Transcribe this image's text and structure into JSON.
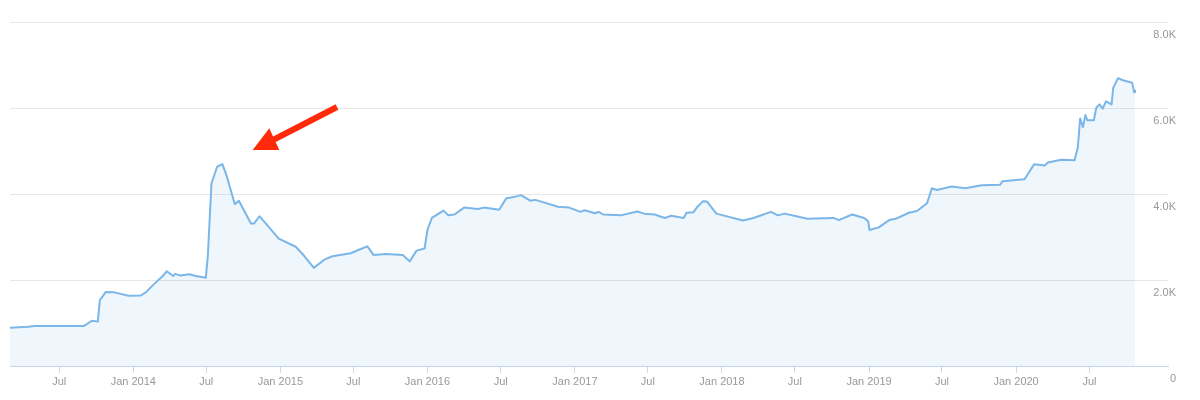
{
  "chart_data": {
    "type": "area",
    "grid": "y",
    "x": [
      "2013-03-01",
      "2013-04-15",
      "2013-05-01",
      "2013-09-01",
      "2013-09-20",
      "2013-10-05",
      "2013-10-10",
      "2013-10-25",
      "2013-11-15",
      "2013-12-20",
      "2014-01-20",
      "2014-02-01",
      "2014-02-20",
      "2014-03-15",
      "2014-03-25",
      "2014-04-10",
      "2014-04-15",
      "2014-04-28",
      "2014-05-20",
      "2014-06-05",
      "2014-06-30",
      "2014-07-05",
      "2014-07-14",
      "2014-07-28",
      "2014-08-10",
      "2014-08-20",
      "2014-09-10",
      "2014-09-20",
      "2014-10-20",
      "2014-10-28",
      "2014-11-10",
      "2014-11-25",
      "2014-12-28",
      "2015-02-08",
      "2015-03-01",
      "2015-03-25",
      "2015-04-20",
      "2015-05-10",
      "2015-06-25",
      "2015-07-15",
      "2015-08-05",
      "2015-08-20",
      "2015-09-20",
      "2015-11-01",
      "2015-11-18",
      "2015-12-05",
      "2015-12-25",
      "2016-01-01",
      "2016-01-12",
      "2016-02-10",
      "2016-02-22",
      "2016-03-08",
      "2016-04-01",
      "2016-05-05",
      "2016-05-20",
      "2016-06-27",
      "2016-07-15",
      "2016-08-05",
      "2016-08-20",
      "2016-09-12",
      "2016-09-25",
      "2016-11-20",
      "2016-12-18",
      "2017-01-15",
      "2017-01-25",
      "2017-02-20",
      "2017-03-01",
      "2017-03-12",
      "2017-04-25",
      "2017-06-05",
      "2017-06-22",
      "2017-07-18",
      "2017-08-12",
      "2017-08-28",
      "2017-09-28",
      "2017-10-05",
      "2017-10-22",
      "2017-11-01",
      "2017-11-15",
      "2017-11-25",
      "2017-12-18",
      "2018-02-22",
      "2018-03-20",
      "2018-05-03",
      "2018-05-20",
      "2018-06-05",
      "2018-07-05",
      "2018-08-01",
      "2018-10-05",
      "2018-10-18",
      "2018-11-20",
      "2018-12-20",
      "2018-12-30",
      "2019-01-02",
      "2019-01-25",
      "2019-02-20",
      "2019-03-08",
      "2019-04-10",
      "2019-04-30",
      "2019-05-25",
      "2019-06-06",
      "2019-06-18",
      "2019-07-25",
      "2019-08-28",
      "2019-10-08",
      "2019-11-22",
      "2019-11-28",
      "2019-12-20",
      "2020-01-22",
      "2020-02-15",
      "2020-03-12",
      "2020-03-20",
      "2020-04-22",
      "2020-05-25",
      "2020-06-02",
      "2020-06-08",
      "2020-06-15",
      "2020-06-21",
      "2020-06-26",
      "2020-07-12",
      "2020-07-18",
      "2020-07-26",
      "2020-08-03",
      "2020-08-11",
      "2020-08-25",
      "2020-08-29",
      "2020-09-10",
      "2020-09-22",
      "2020-10-15",
      "2020-10-20",
      "2020-10-22"
    ],
    "series": [
      {
        "color": "#7ab6e8",
        "values": [
          910,
          930,
          950,
          950,
          1070,
          1050,
          1550,
          1740,
          1730,
          1650,
          1660,
          1730,
          1910,
          2110,
          2220,
          2110,
          2160,
          2120,
          2150,
          2110,
          2070,
          2580,
          4260,
          4650,
          4710,
          4460,
          3780,
          3860,
          3330,
          3330,
          3500,
          3340,
          2980,
          2790,
          2580,
          2300,
          2490,
          2570,
          2640,
          2720,
          2800,
          2600,
          2620,
          2600,
          2450,
          2700,
          2750,
          3180,
          3460,
          3630,
          3520,
          3540,
          3700,
          3670,
          3700,
          3650,
          3920,
          3950,
          3990,
          3860,
          3880,
          3720,
          3700,
          3600,
          3640,
          3570,
          3600,
          3540,
          3520,
          3610,
          3560,
          3540,
          3460,
          3510,
          3460,
          3580,
          3590,
          3720,
          3850,
          3840,
          3560,
          3400,
          3460,
          3600,
          3520,
          3560,
          3500,
          3440,
          3460,
          3410,
          3540,
          3460,
          3380,
          3180,
          3240,
          3410,
          3440,
          3580,
          3620,
          3800,
          4150,
          4110,
          4190,
          4150,
          4220,
          4230,
          4310,
          4330,
          4360,
          4710,
          4680,
          4750,
          4810,
          4800,
          5090,
          5770,
          5570,
          5850,
          5730,
          5730,
          6020,
          6100,
          6000,
          6170,
          6100,
          6480,
          6710,
          6660,
          6600,
          6380,
          6440
        ]
      }
    ],
    "xlim": [
      "2013-03-01",
      "2021-01-12"
    ],
    "xticks": [
      {
        "value": "2013-07-01",
        "label": "Jul"
      },
      {
        "value": "2014-01-01",
        "label": "Jan 2014"
      },
      {
        "value": "2014-07-01",
        "label": "Jul"
      },
      {
        "value": "2015-01-01",
        "label": "Jan 2015"
      },
      {
        "value": "2015-07-01",
        "label": "Jul"
      },
      {
        "value": "2016-01-01",
        "label": "Jan 2016"
      },
      {
        "value": "2016-07-01",
        "label": "Jul"
      },
      {
        "value": "2017-01-01",
        "label": "Jan 2017"
      },
      {
        "value": "2017-07-01",
        "label": "Jul"
      },
      {
        "value": "2018-01-01",
        "label": "Jan 2018"
      },
      {
        "value": "2018-07-01",
        "label": "Jul"
      },
      {
        "value": "2019-01-01",
        "label": "Jan 2019"
      },
      {
        "value": "2019-07-01",
        "label": "Jul"
      },
      {
        "value": "2020-01-01",
        "label": "Jan 2020"
      },
      {
        "value": "2020-07-01",
        "label": "Jul"
      }
    ],
    "ylim": [
      0,
      8000
    ],
    "yticks": [
      {
        "value": 0,
        "label": "0"
      },
      {
        "value": 2000,
        "label": "2.0K"
      },
      {
        "value": 4000,
        "label": "4.0K"
      },
      {
        "value": 6000,
        "label": "6.0K"
      },
      {
        "value": 8000,
        "label": "8.0K"
      }
    ]
  }
}
